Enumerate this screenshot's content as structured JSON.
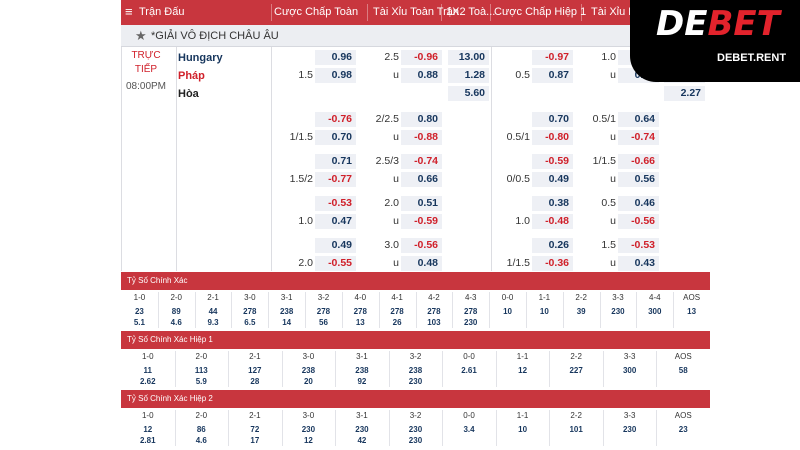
{
  "header": {
    "menu_glyph": "≡",
    "columns": [
      "Trận Đấu",
      "Cược Chấp Toàn ...",
      "Tài Xỉu Toàn Trận",
      "1X2 Toà...",
      "Cược Chấp Hiệp 1",
      "Tài Xỉu Hiệp 1"
    ]
  },
  "league": {
    "star": "★",
    "name": "*GIẢI VÔ ĐỊCH CHÂU ÂU"
  },
  "match": {
    "status_live": "TRỰC\nTIẾP",
    "status_live_l1": "TRỰC",
    "status_live_l2": "TIẾP",
    "time": "08:00PM",
    "home": "Hungary",
    "away": "Pháp",
    "draw": "Hòa"
  },
  "odds_rows": [
    {
      "ft_hdp": {
        "line": "1.5",
        "h": "0.96",
        "a": "0.98"
      },
      "ft_ou": {
        "line": "2.5",
        "u": "u",
        "o": "-0.96",
        "un": "0.88"
      },
      "x12": [
        "13.00",
        "1.28",
        "5.60"
      ],
      "h1_hdp": {
        "line": "0.5",
        "h": "-0.97",
        "a": "0.87"
      },
      "h1_ou": {
        "line": "1.0",
        "u": "u",
        "o": "-0.89",
        "un": "0.79"
      },
      "h1_x12": [
        "9.30",
        "1.87",
        "2.27"
      ]
    },
    {
      "ft_hdp": {
        "line": "1/1.5",
        "h": "-0.76",
        "a": "0.70"
      },
      "ft_ou": {
        "line": "2/2.5",
        "u": "u",
        "o": "0.80",
        "un": "-0.88"
      },
      "h1_hdp": {
        "line": "0.5/1",
        "h": "0.70",
        "a": "-0.80"
      },
      "h1_ou": {
        "line": "0.5/1",
        "u": "u",
        "o": "0.64",
        "un": "-0.74"
      }
    },
    {
      "ft_hdp": {
        "line": "1.5/2",
        "h": "0.71",
        "a": "-0.77"
      },
      "ft_ou": {
        "line": "2.5/3",
        "u": "u",
        "o": "-0.74",
        "un": "0.66"
      },
      "h1_hdp": {
        "line": "0/0.5",
        "h": "-0.59",
        "a": "0.49"
      },
      "h1_ou": {
        "line": "1/1.5",
        "u": "u",
        "o": "-0.66",
        "un": "0.56"
      }
    },
    {
      "ft_hdp": {
        "line": "1.0",
        "h": "-0.53",
        "a": "0.47"
      },
      "ft_ou": {
        "line": "2.0",
        "u": "u",
        "o": "0.51",
        "un": "-0.59"
      },
      "h1_hdp": {
        "line": "1.0",
        "h": "0.38",
        "a": "-0.48"
      },
      "h1_ou": {
        "line": "0.5",
        "u": "u",
        "o": "0.46",
        "un": "-0.56"
      }
    },
    {
      "ft_hdp": {
        "line": "2.0",
        "h": "0.49",
        "a": "-0.55"
      },
      "ft_ou": {
        "line": "3.0",
        "u": "u",
        "o": "-0.56",
        "un": "0.48"
      },
      "h1_hdp": {
        "line": "1/1.5",
        "h": "0.26",
        "a": "-0.36"
      },
      "h1_ou": {
        "line": "1.5",
        "u": "u",
        "o": "-0.53",
        "un": "0.43"
      }
    }
  ],
  "correct_score_ft": {
    "title": "Tỷ Số Chính Xác",
    "scores": [
      "1-0",
      "2-0",
      "2-1",
      "3-0",
      "3-1",
      "3-2",
      "4-0",
      "4-1",
      "4-2",
      "4-3",
      "0-0",
      "1-1",
      "2-2",
      "3-3",
      "4-4",
      "AOS"
    ],
    "row1": [
      "23",
      "89",
      "44",
      "278",
      "238",
      "278",
      "278",
      "278",
      "278",
      "278",
      "10",
      "10",
      "39",
      "230",
      "300",
      "13"
    ],
    "row2": [
      "5.1",
      "4.6",
      "9.3",
      "6.5",
      "14",
      "56",
      "13",
      "26",
      "103",
      "230",
      "",
      "",
      "",
      "",
      "",
      ""
    ]
  },
  "correct_score_h1": {
    "title": "Tỷ Số Chính Xác Hiệp 1",
    "scores": [
      "1-0",
      "2-0",
      "2-1",
      "3-0",
      "3-1",
      "3-2",
      "0-0",
      "1-1",
      "2-2",
      "3-3",
      "AOS"
    ],
    "row1": [
      "11",
      "113",
      "127",
      "238",
      "238",
      "238",
      "2.61",
      "12",
      "227",
      "300",
      "58"
    ],
    "row2": [
      "2.62",
      "5.9",
      "28",
      "20",
      "92",
      "230",
      "",
      "",
      "",
      "",
      ""
    ]
  },
  "correct_score_h2": {
    "title": "Tỷ Số Chính Xác Hiệp 2",
    "scores": [
      "1-0",
      "2-0",
      "2-1",
      "3-0",
      "3-1",
      "3-2",
      "0-0",
      "1-1",
      "2-2",
      "3-3",
      "AOS"
    ],
    "row1": [
      "12",
      "86",
      "72",
      "230",
      "230",
      "230",
      "3.4",
      "10",
      "101",
      "230",
      "23"
    ],
    "row2": [
      "2.81",
      "4.6",
      "17",
      "12",
      "42",
      "230",
      "",
      "",
      "",
      "",
      ""
    ]
  },
  "logo": {
    "text_de": "DE",
    "text_bet": "BET",
    "url": "DEBET.RENT"
  },
  "colors": {
    "header": "#c8363e",
    "positive": "#17365d",
    "negative": "#d0202a",
    "odds_bg": "#eef0f5"
  }
}
